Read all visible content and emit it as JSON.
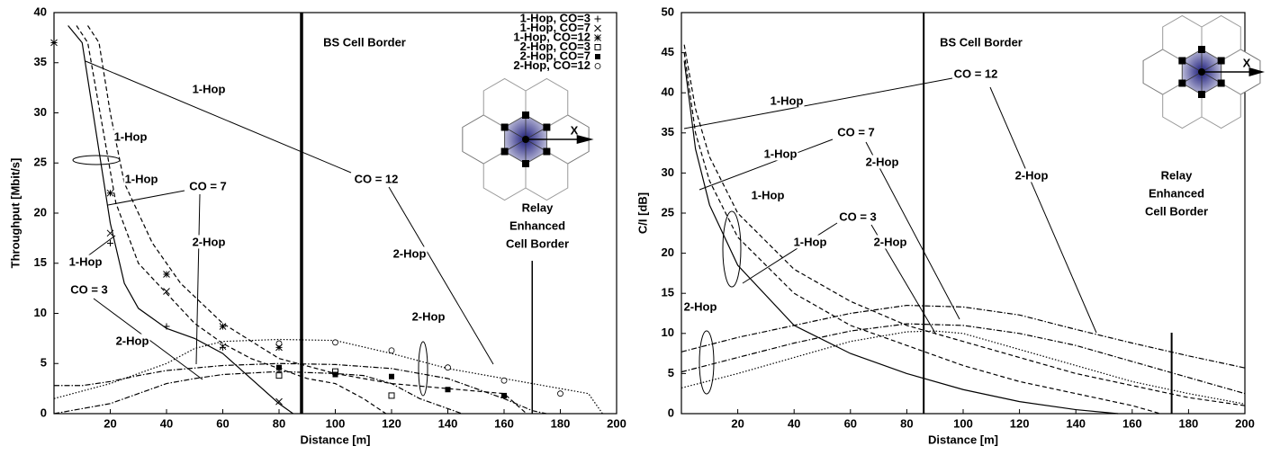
{
  "chart_data": [
    {
      "type": "line",
      "x_label": "Distance [m]",
      "y_label": "Throughput [Mbit/s]",
      "xlim": [
        0,
        200
      ],
      "ylim": [
        0,
        40
      ],
      "xticks": [
        20,
        40,
        60,
        80,
        100,
        120,
        140,
        160,
        180,
        200
      ],
      "yticks": [
        0,
        5,
        10,
        15,
        20,
        25,
        30,
        35,
        40
      ],
      "series": [
        {
          "dash": "solid",
          "color": "#000000",
          "x": [
            5,
            10,
            15,
            20,
            25,
            30,
            40,
            50,
            60,
            70,
            80,
            85
          ],
          "values": [
            38.7,
            37,
            28,
            19,
            13,
            10.5,
            8.5,
            7.5,
            6,
            3.5,
            1,
            0
          ]
        },
        {
          "dash": "dashed",
          "color": "#000000",
          "x": [
            8,
            12,
            17,
            22,
            30,
            40,
            50,
            60,
            70,
            80,
            90,
            100,
            110,
            118
          ],
          "values": [
            38.7,
            37,
            29,
            21,
            15,
            12,
            9,
            7,
            5.5,
            4.5,
            3.5,
            3,
            1.5,
            0
          ]
        },
        {
          "dash": "dashed",
          "color": "#000000",
          "x": [
            12,
            16,
            20,
            25,
            35,
            45,
            60,
            80,
            100,
            120,
            140,
            160,
            168
          ],
          "values": [
            38.7,
            37,
            30,
            23,
            17,
            13,
            9,
            5.5,
            4,
            3,
            2.5,
            2,
            0
          ]
        },
        {
          "dash": "dashdot",
          "color": "#000000",
          "x": [
            0,
            10,
            20,
            30,
            40,
            50,
            60,
            80,
            100,
            110,
            120,
            130,
            140,
            145
          ],
          "values": [
            0,
            0.5,
            1,
            2,
            3,
            3.5,
            3.9,
            4.2,
            4,
            3.8,
            3,
            1.5,
            0.5,
            0
          ]
        },
        {
          "dash": "dashdot",
          "color": "#000000",
          "x": [
            0,
            10,
            20,
            30,
            40,
            60,
            80,
            100,
            120,
            140,
            150,
            160,
            170,
            175
          ],
          "values": [
            2.8,
            2.8,
            3.2,
            3.8,
            4.3,
            4.8,
            5,
            4.9,
            4.5,
            3.5,
            2.5,
            1.5,
            0.3,
            0
          ]
        },
        {
          "dash": "dotted",
          "color": "#000000",
          "x": [
            0,
            20,
            40,
            50,
            60,
            80,
            100,
            120,
            140,
            160,
            180,
            190,
            195
          ],
          "values": [
            1.5,
            3,
            5,
            6.5,
            7.2,
            7.4,
            7.3,
            6,
            4.5,
            3.5,
            2.5,
            2,
            0
          ]
        }
      ],
      "scatter": [
        {
          "name": "1-Hop, CO=3",
          "marker": "plus",
          "color": "#000000",
          "x": [
            20,
            40,
            60,
            80
          ],
          "values": [
            17,
            8.7,
            6.6,
            4.5
          ]
        },
        {
          "name": "1-Hop, CO=7",
          "marker": "cross",
          "color": "#000000",
          "x": [
            20,
            40,
            60,
            80
          ],
          "values": [
            18,
            12.2,
            6.7,
            1.2
          ]
        },
        {
          "name": "1-Hop, CO=12",
          "marker": "asterisk",
          "color": "#000000",
          "x": [
            0,
            20,
            40,
            60,
            80
          ],
          "values": [
            37,
            22,
            13.9,
            8.7,
            6.6
          ]
        },
        {
          "name": "2-Hop, CO=3",
          "marker": "square-open",
          "color": "#000000",
          "x": [
            80,
            100,
            120
          ],
          "values": [
            3.8,
            4.2,
            1.8
          ]
        },
        {
          "name": "2-Hop, CO=7",
          "marker": "square-filled",
          "color": "#000000",
          "x": [
            80,
            100,
            120,
            140,
            160
          ],
          "values": [
            4.6,
            3.9,
            3.7,
            2.4,
            1.8
          ]
        },
        {
          "name": "2-Hop, CO=12",
          "marker": "circle-open",
          "color": "#000000",
          "x": [
            80,
            100,
            120,
            140,
            160,
            180
          ],
          "values": [
            7,
            7.1,
            6.3,
            4.6,
            3.3,
            2
          ]
        }
      ],
      "borders": [
        {
          "x": 88,
          "label": [
            "BS Cell Border"
          ]
        },
        {
          "x": 170,
          "label": [
            "Relay",
            "Enhanced",
            "Cell Border"
          ]
        }
      ],
      "annotations": [
        "1-Hop",
        "CO = 12",
        "2-Hop",
        "1-Hop",
        "1-Hop",
        "CO = 7",
        "2-Hop",
        "1-Hop",
        "CO = 3",
        "2-Hop",
        "2-Hop"
      ],
      "icon_label": "X"
    },
    {
      "type": "line",
      "x_label": "Distance [m]",
      "y_label": "C/I [dB]",
      "xlim": [
        0,
        200
      ],
      "ylim": [
        0,
        50
      ],
      "xticks": [
        20,
        40,
        60,
        80,
        100,
        120,
        140,
        160,
        180,
        200
      ],
      "yticks": [
        0,
        5,
        10,
        15,
        20,
        25,
        30,
        35,
        40,
        45,
        50
      ],
      "series": [
        {
          "dash": "solid",
          "color": "#000000",
          "x": [
            1,
            5,
            10,
            20,
            40,
            60,
            80,
            100,
            120,
            140,
            155
          ],
          "values": [
            44,
            33,
            26,
            18.5,
            11,
            7.5,
            5,
            3,
            1.5,
            0.5,
            0
          ]
        },
        {
          "dash": "dashed",
          "color": "#000000",
          "x": [
            1,
            5,
            10,
            20,
            40,
            60,
            80,
            100,
            120,
            140,
            160,
            170
          ],
          "values": [
            45,
            35,
            29,
            22,
            15,
            11,
            8.5,
            6,
            4,
            2.5,
            1,
            0
          ]
        },
        {
          "dash": "dashed",
          "color": "#000000",
          "x": [
            1,
            5,
            10,
            20,
            40,
            60,
            80,
            100,
            120,
            140,
            160,
            180,
            200
          ],
          "values": [
            46,
            38,
            32,
            25,
            18,
            14,
            11,
            9,
            7,
            5,
            3.5,
            2,
            1
          ]
        },
        {
          "dash": "dotted",
          "color": "#000000",
          "x": [
            0,
            20,
            40,
            60,
            80,
            90,
            100,
            120,
            140,
            160,
            180,
            200
          ],
          "values": [
            3.2,
            5,
            7,
            9,
            10.2,
            10.3,
            10,
            8,
            6,
            4,
            2.5,
            1.2
          ]
        },
        {
          "dash": "dashdot",
          "color": "#000000",
          "x": [
            0,
            20,
            40,
            60,
            80,
            100,
            120,
            140,
            160,
            180,
            200
          ],
          "values": [
            5.2,
            7,
            8.8,
            10.3,
            11.2,
            11,
            10,
            8.5,
            6.5,
            4.5,
            2.5
          ]
        },
        {
          "dash": "dashdot",
          "color": "#000000",
          "x": [
            0,
            20,
            40,
            60,
            80,
            100,
            120,
            140,
            160,
            180,
            200
          ],
          "values": [
            7.7,
            9.5,
            11,
            12.5,
            13.5,
            13.3,
            12.3,
            10.5,
            8.8,
            7.2,
            5.7
          ]
        }
      ],
      "scatter": [],
      "borders": [
        {
          "x": 86,
          "label": [
            "BS Cell Border"
          ]
        },
        {
          "x": 174,
          "label": [
            "Relay",
            "Enhanced",
            "Cell Border"
          ]
        }
      ],
      "annotations": [
        "1-Hop",
        "CO = 12",
        "2-Hop",
        "1-Hop",
        "CO = 7",
        "2-Hop",
        "1-Hop",
        "1-Hop",
        "CO = 3",
        "2-Hop",
        "2-Hop"
      ],
      "icon_label": "X"
    }
  ]
}
